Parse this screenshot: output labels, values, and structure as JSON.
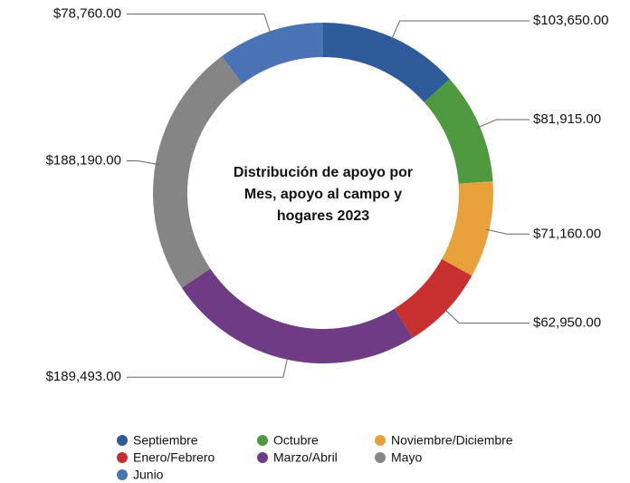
{
  "chart_data": {
    "type": "donut",
    "title": "Distribución de apoyo por Mes, apoyo al campo y hogares 2023",
    "title_lines": [
      "Distribución de apoyo por",
      "Mes, apoyo al campo y",
      "hogares 2023"
    ],
    "categories": [
      "Septiembre",
      "Octubre",
      "Noviembre/Diciembre",
      "Enero/Febrero",
      "Marzo/Abril",
      "Mayo",
      "Junio"
    ],
    "values": [
      103650,
      81915,
      71160,
      62950,
      189493,
      188190,
      78760
    ],
    "value_labels": [
      "$103,650.00",
      "$81,915.00",
      "$71,160.00",
      "$62,950.00",
      "$189,493.00",
      "$188,190.00",
      "$78,760.00"
    ],
    "colors": [
      "#2f5b9a",
      "#4f9a3e",
      "#e9a23b",
      "#c8302f",
      "#6f3b84",
      "#858585",
      "#4a73b5"
    ],
    "legend": "bottom"
  }
}
